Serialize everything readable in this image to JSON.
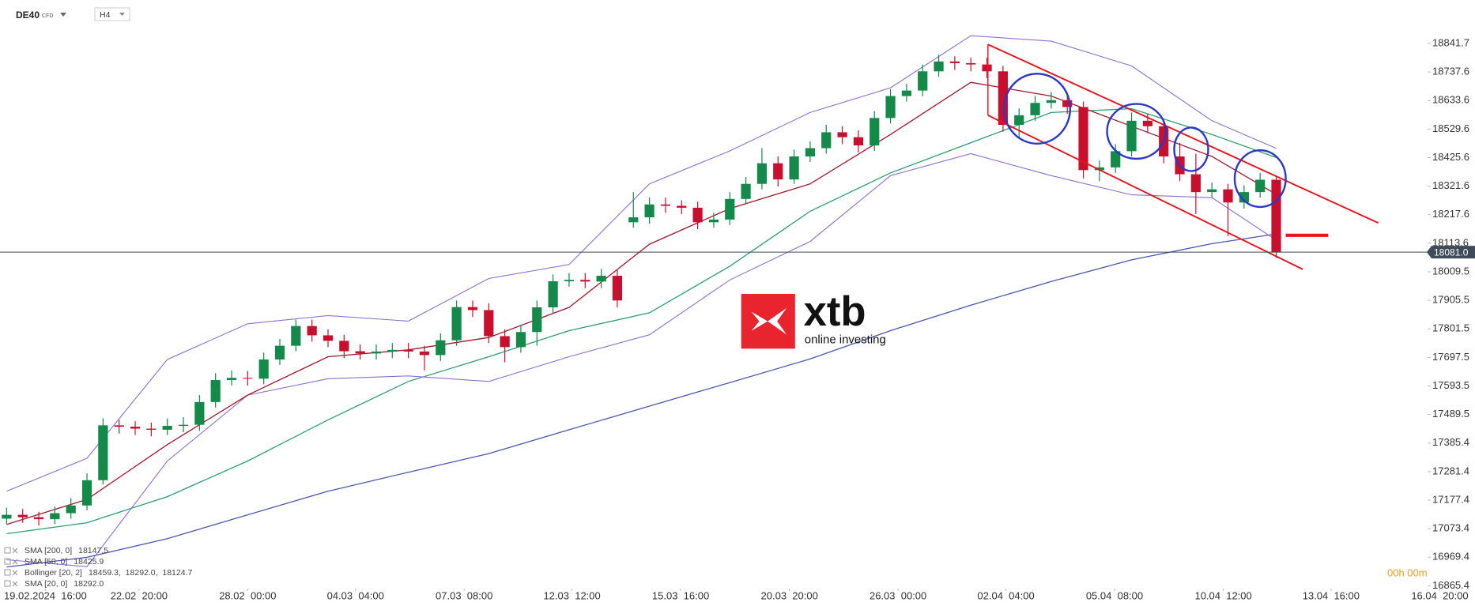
{
  "header": {
    "symbol": "DE40",
    "tag": "CFD",
    "interval": "H4"
  },
  "chart_data": {
    "type": "candlestick",
    "x": [
      0,
      1,
      2,
      3,
      4,
      5,
      6,
      7,
      8,
      9,
      10,
      11,
      12,
      13,
      14,
      15,
      16,
      17,
      18,
      19,
      20,
      21,
      22,
      23,
      24,
      25,
      26,
      27,
      28,
      29,
      30,
      31,
      32,
      33,
      34,
      35,
      36,
      37,
      38,
      39,
      40,
      41,
      42,
      43,
      44,
      45,
      46,
      47,
      48,
      49,
      50,
      51,
      52,
      53,
      54,
      55,
      56,
      57,
      58,
      59,
      60,
      61,
      62,
      63,
      64,
      65,
      66,
      67,
      68,
      69,
      70,
      71,
      72,
      73,
      74,
      75,
      76,
      77,
      78,
      79
    ],
    "open": [
      17110,
      17124,
      17115,
      17108,
      17130,
      17158,
      17250,
      17450,
      17445,
      17438,
      17434,
      17448,
      17452,
      17535,
      17615,
      17623,
      17620,
      17690,
      17740,
      17812,
      17778,
      17758,
      17720,
      17712,
      17719,
      17725,
      17719,
      17706,
      17760,
      17881,
      17870,
      17775,
      17735,
      17790,
      17880,
      17975,
      17980,
      17974,
      17995,
      18190,
      18208,
      18255,
      18250,
      18243,
      18190,
      18200,
      18275,
      18330,
      18405,
      18346,
      18430,
      18460,
      18518,
      18500,
      18470,
      18570,
      18650,
      18670,
      18740,
      18776,
      18770,
      18765,
      18740,
      18545,
      18580,
      18625,
      18635,
      18610,
      18380,
      18390,
      18449,
      18560,
      18540,
      18430,
      18365,
      18300,
      18310,
      18262,
      18300,
      18345
    ],
    "high": [
      17150,
      17145,
      17135,
      17155,
      17185,
      17275,
      17475,
      17470,
      17465,
      17460,
      17475,
      17480,
      17560,
      17640,
      17650,
      17648,
      17715,
      17765,
      17835,
      17835,
      17800,
      17780,
      17745,
      17745,
      17750,
      17750,
      17740,
      17785,
      17905,
      17905,
      17895,
      17800,
      17815,
      17905,
      18000,
      18005,
      18005,
      18020,
      18015,
      18300,
      18280,
      18280,
      18270,
      18265,
      18225,
      18300,
      18355,
      18460,
      18430,
      18455,
      18485,
      18545,
      18540,
      18525,
      18595,
      18675,
      18695,
      18765,
      18800,
      18795,
      18790,
      18790,
      18760,
      18605,
      18650,
      18665,
      18660,
      18630,
      18415,
      18475,
      18590,
      18585,
      18560,
      18480,
      18440,
      18335,
      18330,
      18325,
      18370,
      18360
    ],
    "low": [
      17090,
      17095,
      17085,
      17090,
      17110,
      17140,
      17235,
      17420,
      17415,
      17410,
      17415,
      17425,
      17430,
      17515,
      17595,
      17595,
      17600,
      17670,
      17720,
      17755,
      17735,
      17695,
      17690,
      17690,
      17695,
      17695,
      17650,
      17685,
      17740,
      17845,
      17750,
      17680,
      17715,
      17740,
      17860,
      17955,
      17950,
      17950,
      17880,
      18170,
      18185,
      18225,
      18220,
      18165,
      18170,
      18180,
      18255,
      18310,
      18320,
      18330,
      18410,
      18440,
      18475,
      18445,
      18450,
      18550,
      18630,
      18650,
      18720,
      18745,
      18740,
      18715,
      18520,
      18500,
      18560,
      18605,
      18585,
      18350,
      18340,
      18370,
      18430,
      18515,
      18405,
      18340,
      18220,
      18280,
      18140,
      18240,
      18280,
      18060
    ],
    "close": [
      17124,
      17115,
      17108,
      17130,
      17158,
      17250,
      17450,
      17445,
      17438,
      17434,
      17448,
      17452,
      17535,
      17615,
      17623,
      17620,
      17690,
      17740,
      17812,
      17778,
      17758,
      17720,
      17712,
      17719,
      17725,
      17719,
      17706,
      17760,
      17881,
      17870,
      17775,
      17735,
      17790,
      17880,
      17975,
      17980,
      17974,
      17995,
      17905,
      18208,
      18255,
      18250,
      18243,
      18190,
      18200,
      18275,
      18330,
      18405,
      18346,
      18430,
      18460,
      18518,
      18500,
      18470,
      18570,
      18650,
      18670,
      18740,
      18776,
      18770,
      18765,
      18740,
      18545,
      18580,
      18625,
      18635,
      18610,
      18380,
      18390,
      18449,
      18560,
      18540,
      18430,
      18365,
      18300,
      18310,
      18262,
      18300,
      18345,
      18081
    ],
    "up_color": "#13894a",
    "down_color": "#c8102e",
    "xlim": [
      -0.412,
      91.37
    ],
    "xticks": [
      {
        "value": 2.41,
        "label": "19.02.2024  16:00"
      },
      {
        "value": 8.24,
        "label": "22.02  20:00"
      },
      {
        "value": 15,
        "label": "28.02  00:00"
      },
      {
        "value": 21.71,
        "label": "04.03  04:00"
      },
      {
        "value": 28.47,
        "label": "07.03  08:00"
      },
      {
        "value": 35.18,
        "label": "12.03  12:00"
      },
      {
        "value": 41.94,
        "label": "15.03  16:00"
      },
      {
        "value": 48.71,
        "label": "20.03  20:00"
      },
      {
        "value": 55.47,
        "label": "26.03  00:00"
      },
      {
        "value": 62.18,
        "label": "02.04  04:00"
      },
      {
        "value": 68.94,
        "label": "05.04  08:00"
      },
      {
        "value": 75.71,
        "label": "10.04  12:00"
      },
      {
        "value": 82.41,
        "label": "13.04  16:00"
      },
      {
        "value": 89.18,
        "label": "16.04  20:00"
      }
    ],
    "ylim": [
      16855,
      19000
    ],
    "yticks": [
      16865.4,
      16969.4,
      17073.4,
      17177.4,
      17281.4,
      17385.4,
      17489.5,
      17593.5,
      17697.5,
      17801.5,
      17905.5,
      18009.5,
      18113.6,
      18217.6,
      18321.6,
      18425.6,
      18529.6,
      18633.6,
      18737.6,
      18841.7
    ],
    "overlays": [
      {
        "name": "SMA [200, 0]",
        "label": "18147.5",
        "color": "#4b57b3",
        "x": [
          0,
          5,
          10,
          15,
          20,
          25,
          30,
          35,
          40,
          45,
          50,
          55,
          60,
          65,
          70,
          75,
          79
        ],
        "values": [
          16934,
          16969,
          17037,
          17124,
          17210,
          17279,
          17347,
          17434,
          17520,
          17606,
          17692,
          17795,
          17888,
          17974,
          18053,
          18112,
          18147.5
        ]
      },
      {
        "name": "SMA [50, 0]",
        "label": "18425.9",
        "color": "#2e9e6e",
        "x": [
          0,
          5,
          10,
          15,
          20,
          25,
          30,
          35,
          40,
          45,
          50,
          55,
          60,
          65,
          70,
          75,
          79
        ],
        "values": [
          17055,
          17095,
          17190,
          17320,
          17470,
          17610,
          17700,
          17795,
          17860,
          18030,
          18230,
          18370,
          18480,
          18590,
          18604,
          18510,
          18425.9
        ]
      },
      {
        "name": "Bollinger [20, 2]",
        "label": "18459.3,  18292.0,  18124.7",
        "color": "#8b6fd2",
        "x": [
          0,
          5,
          10,
          15,
          20,
          25,
          30,
          35,
          40,
          45,
          50,
          55,
          60,
          65,
          70,
          75,
          79
        ],
        "upper": [
          17210,
          17330,
          17690,
          17820,
          17850,
          17830,
          17985,
          18036,
          18330,
          18450,
          18590,
          18680,
          18870,
          18850,
          18760,
          18560,
          18459.3
        ],
        "lower": [
          16960,
          16935,
          17320,
          17560,
          17620,
          17630,
          17610,
          17700,
          17780,
          17980,
          18120,
          18360,
          18440,
          18360,
          18290,
          18280,
          18124.7
        ]
      },
      {
        "name": "SMA [20, 0]",
        "label": "18292.0",
        "color": "#a3162a",
        "x": [
          0,
          5,
          10,
          15,
          20,
          25,
          30,
          35,
          40,
          45,
          50,
          55,
          60,
          65,
          70,
          75,
          79
        ],
        "values": [
          17089,
          17180,
          17380,
          17560,
          17700,
          17725,
          17770,
          17880,
          18110,
          18240,
          18330,
          18510,
          18700,
          18650,
          18540,
          18430,
          18292
        ]
      }
    ],
    "last_price": {
      "value": 18081,
      "label": "18081.0"
    },
    "timer": "00h 00m"
  },
  "logo": {
    "brand": "xtb",
    "tagline": "online investing"
  }
}
